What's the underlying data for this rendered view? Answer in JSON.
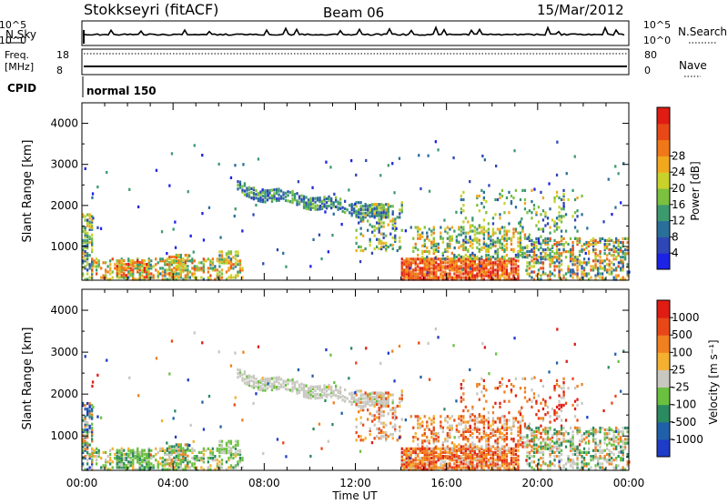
{
  "header": {
    "station": "Stokkseyri (fitACF)",
    "beam": "Beam 06",
    "date": "15/Mar/2012"
  },
  "info_panels": {
    "nsky_label": "N.Sky",
    "nsearch_label": "N.Search",
    "noise_tick_top": "10^5",
    "noise_tick_bottom": "10^0",
    "freq_label_1": "Freq.",
    "freq_label_2": "[MHz]",
    "freq_ticks": [
      "18",
      "8"
    ],
    "nave_label": "Nave",
    "nave_ticks": [
      "80",
      "0"
    ],
    "cpid_label": "CPID",
    "cpid_value": "normal 150"
  },
  "chart_data": [
    {
      "type": "heatmap",
      "name": "power",
      "xlabel": "",
      "ylabel": "Slant Range [km]",
      "x_range_hours": [
        0,
        24
      ],
      "ylim": [
        180,
        4500
      ],
      "y_ticks": [
        "1000",
        "2000",
        "3000",
        "4000"
      ],
      "colorbar": {
        "label": "Power [dB]",
        "ticks": [
          "4",
          "8",
          "12",
          "16",
          "20",
          "24",
          "28"
        ],
        "colors": [
          "#1c22e6",
          "#2e46b6",
          "#2a6f9a",
          "#3d9a6e",
          "#7cc040",
          "#c8d22a",
          "#f2a81e",
          "#f07818",
          "#e84818",
          "#e01c14"
        ]
      }
    },
    {
      "type": "heatmap",
      "name": "velocity",
      "xlabel": "Time UT",
      "ylabel": "Slant Range [km]",
      "x_range_hours": [
        0,
        24
      ],
      "ylim": [
        180,
        4500
      ],
      "y_ticks": [
        "1000",
        "2000",
        "3000",
        "4000"
      ],
      "x_ticks": [
        "00:00",
        "04:00",
        "08:00",
        "12:00",
        "16:00",
        "20:00",
        "00:00"
      ],
      "colorbar": {
        "label": "Velocity [m s⁻¹]",
        "ticks": [
          "1000",
          "500",
          "100",
          "25",
          "-25",
          "-100",
          "-500",
          "-1000"
        ],
        "colors": [
          "#1e3cc8",
          "#2060a8",
          "#2a8a60",
          "#6cc040",
          "#c8c8c0",
          "#f4b030",
          "#f08020",
          "#e84818",
          "#e01c14"
        ]
      }
    }
  ]
}
